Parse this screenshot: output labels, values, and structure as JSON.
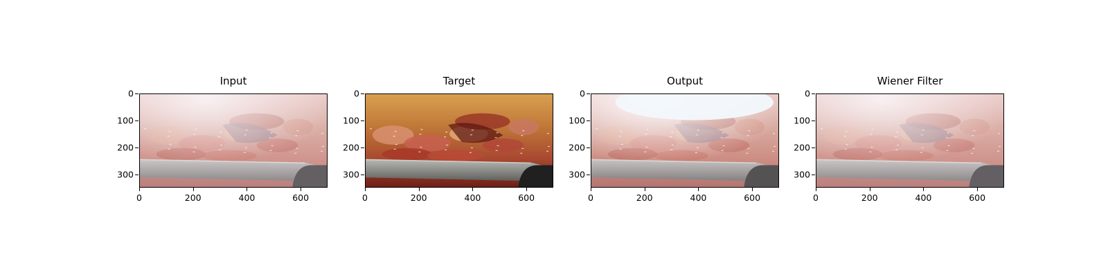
{
  "figure": {
    "panels": [
      {
        "title": "Input",
        "variant": "hazy"
      },
      {
        "title": "Target",
        "variant": "clear"
      },
      {
        "title": "Output",
        "variant": "bright"
      },
      {
        "title": "Wiener Filter",
        "variant": "hazy"
      }
    ],
    "x_axis": {
      "range": [
        0,
        700
      ],
      "ticks": [
        {
          "value": 0,
          "label": "0"
        },
        {
          "value": 200,
          "label": "200"
        },
        {
          "value": 400,
          "label": "400"
        },
        {
          "value": 600,
          "label": "600"
        }
      ]
    },
    "y_axis": {
      "range": [
        0,
        350
      ],
      "ticks": [
        {
          "value": 0,
          "label": "0"
        },
        {
          "value": 100,
          "label": "100"
        },
        {
          "value": 200,
          "label": "200"
        },
        {
          "value": 300,
          "label": "300"
        }
      ]
    }
  },
  "colors": {
    "tissue": "#c8785a",
    "tissue_dark": "#8a2a20",
    "fat": "#e0b070",
    "instrument": "#9a9a96",
    "haze": "#f4e6ee"
  }
}
